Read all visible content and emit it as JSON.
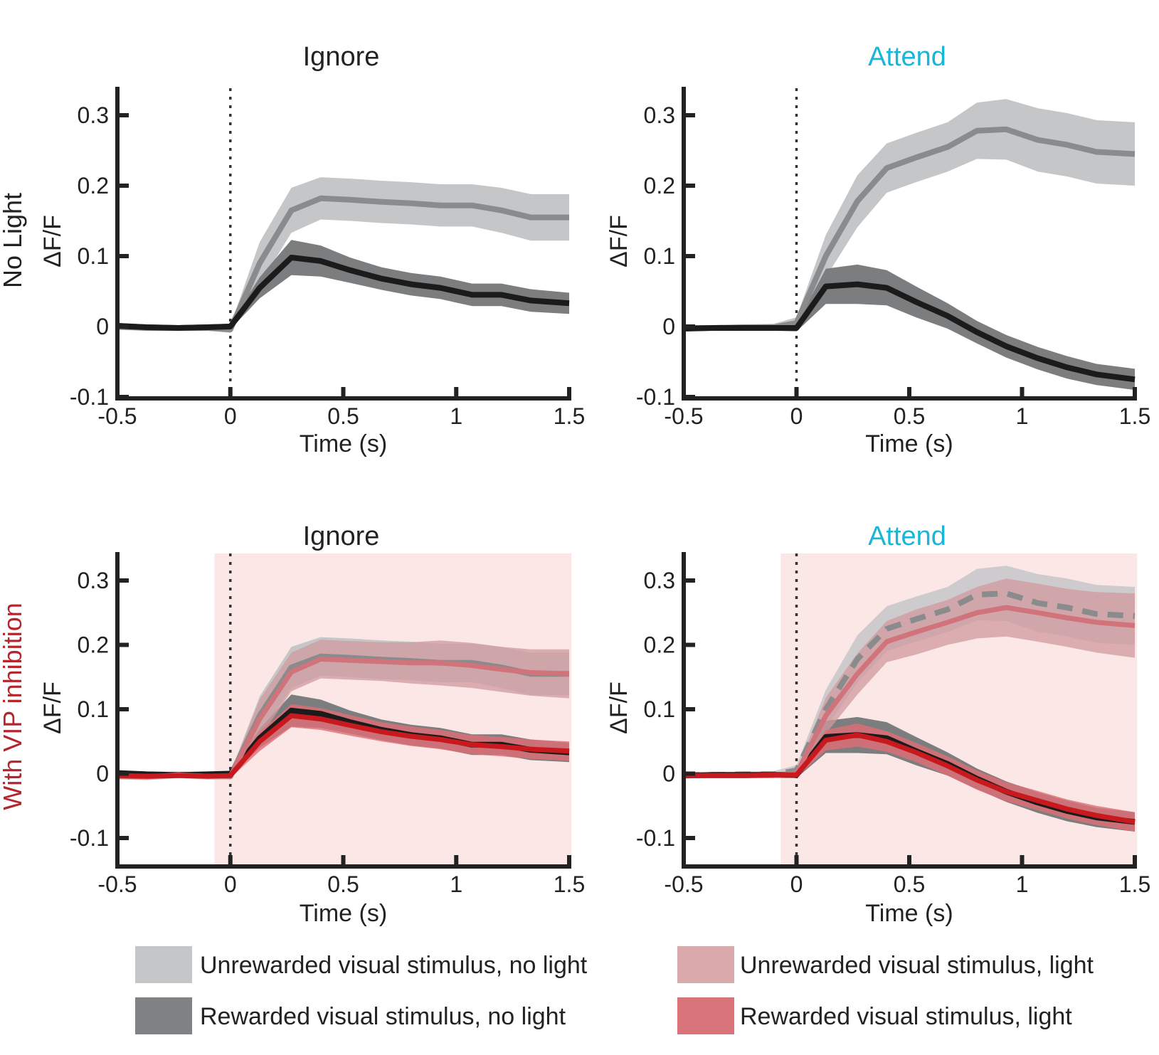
{
  "row_labels": {
    "top": {
      "text": "No Light",
      "color": "#222222"
    },
    "bottom": {
      "text": "With VIP inhibition",
      "color": "#b5252b"
    }
  },
  "colors": {
    "title_ignore": "#222222",
    "title_attend": "#18b6d8",
    "light_window": "#fbe7e6",
    "band_unrewarded_nolight": "#c4c6c8",
    "line_unrewarded_nolight": "#8a8b8d",
    "band_rewarded_nolight": "#7c7d7f",
    "line_rewarded_nolight": "#1b1b1b",
    "band_unrewarded_light": "#d29a9e",
    "line_unrewarded_light": "#d0737b",
    "band_rewarded_light": "#df6e75",
    "line_rewarded_light": "#c8191f"
  },
  "legend": [
    {
      "label": "Unrewarded visual stimulus, no light",
      "color": "#c4c6c8"
    },
    {
      "label": "Rewarded visual stimulus, no light",
      "color": "#808183"
    },
    {
      "label": "Unrewarded visual stimulus, light",
      "color": "#d9a9ac"
    },
    {
      "label": "Rewarded visual stimulus, light",
      "color": "#da747b"
    }
  ],
  "chart_data": [
    {
      "type": "line",
      "title": "Ignore",
      "title_color_key": "title_ignore",
      "xlabel": "Time (s)",
      "ylabel": "ΔF/F",
      "xlim": [
        -0.5,
        1.5
      ],
      "ylim": [
        -0.1,
        0.35
      ],
      "xticks": [
        -0.5,
        0,
        0.5,
        1,
        1.5
      ],
      "xtick_labels": [
        "-0.5",
        "0",
        "0.5",
        "1",
        "1.5"
      ],
      "yticks": [
        -0.1,
        0,
        0.1,
        0.2,
        0.3
      ],
      "ytick_labels": [
        "-0.1",
        "0",
        "0.1",
        "0.2",
        "0.3"
      ],
      "stimulus_onset": 0,
      "light_window": null,
      "x": [
        -0.5,
        -0.37,
        -0.23,
        -0.1,
        0,
        0.13,
        0.27,
        0.4,
        0.53,
        0.67,
        0.8,
        0.93,
        1.07,
        1.2,
        1.33,
        1.5
      ],
      "series": [
        {
          "name": "Unrewarded visual stimulus, no light",
          "style": "unrewarded_nolight",
          "values": [
            0.0,
            -0.002,
            -0.002,
            -0.002,
            -0.004,
            0.09,
            0.165,
            0.182,
            0.18,
            0.177,
            0.175,
            0.172,
            0.172,
            0.165,
            0.155,
            0.155
          ],
          "err": [
            0.005,
            0.004,
            0.004,
            0.004,
            0.005,
            0.03,
            0.032,
            0.03,
            0.03,
            0.03,
            0.03,
            0.03,
            0.03,
            0.032,
            0.033,
            0.033
          ]
        },
        {
          "name": "Rewarded visual stimulus, no light",
          "style": "rewarded_nolight",
          "values": [
            0.001,
            -0.001,
            -0.002,
            -0.001,
            0.0,
            0.055,
            0.098,
            0.093,
            0.08,
            0.068,
            0.06,
            0.055,
            0.045,
            0.045,
            0.037,
            0.033
          ],
          "err": [
            0.004,
            0.004,
            0.004,
            0.004,
            0.004,
            0.015,
            0.025,
            0.022,
            0.018,
            0.016,
            0.016,
            0.016,
            0.016,
            0.016,
            0.016,
            0.015
          ]
        }
      ]
    },
    {
      "type": "line",
      "title": "Attend",
      "title_color_key": "title_attend",
      "xlabel": "Time (s)",
      "ylabel": "ΔF/F",
      "xlim": [
        -0.5,
        1.5
      ],
      "ylim": [
        -0.1,
        0.35
      ],
      "xticks": [
        -0.5,
        0,
        0.5,
        1,
        1.5
      ],
      "xtick_labels": [
        "-0.5",
        "0",
        "0.5",
        "1",
        "1.5"
      ],
      "yticks": [
        -0.1,
        0,
        0.1,
        0.2,
        0.3
      ],
      "ytick_labels": [
        "-0.1",
        "0",
        "0.1",
        "0.2",
        "0.3"
      ],
      "stimulus_onset": 0,
      "light_window": null,
      "x": [
        -0.5,
        -0.37,
        -0.23,
        -0.1,
        0,
        0.13,
        0.27,
        0.4,
        0.53,
        0.67,
        0.8,
        0.93,
        1.07,
        1.2,
        1.33,
        1.5
      ],
      "series": [
        {
          "name": "Unrewarded visual stimulus, no light",
          "style": "unrewarded_nolight",
          "values": [
            -0.002,
            -0.002,
            -0.001,
            -0.001,
            0.005,
            0.1,
            0.178,
            0.225,
            0.24,
            0.255,
            0.278,
            0.28,
            0.265,
            0.258,
            0.248,
            0.245
          ],
          "err": [
            0.004,
            0.004,
            0.004,
            0.005,
            0.008,
            0.03,
            0.037,
            0.035,
            0.035,
            0.035,
            0.04,
            0.043,
            0.045,
            0.045,
            0.045,
            0.045
          ]
        },
        {
          "name": "Rewarded visual stimulus, no light",
          "style": "rewarded_nolight",
          "values": [
            -0.003,
            -0.002,
            -0.002,
            -0.002,
            -0.002,
            0.057,
            0.06,
            0.055,
            0.035,
            0.015,
            -0.008,
            -0.028,
            -0.045,
            -0.058,
            -0.068,
            -0.075
          ],
          "err": [
            0.004,
            0.004,
            0.004,
            0.004,
            0.005,
            0.025,
            0.028,
            0.025,
            0.022,
            0.018,
            0.016,
            0.016,
            0.016,
            0.016,
            0.015,
            0.015
          ]
        }
      ]
    },
    {
      "type": "line",
      "title": "Ignore",
      "title_color_key": "title_ignore",
      "xlabel": "Time (s)",
      "ylabel": "ΔF/F",
      "xlim": [
        -0.5,
        1.5
      ],
      "ylim": [
        -0.1,
        0.35
      ],
      "xticks": [
        -0.5,
        0,
        0.5,
        1,
        1.5
      ],
      "xtick_labels": [
        "-0.5",
        "0",
        "0.5",
        "1",
        "1.5"
      ],
      "yticks": [
        -0.1,
        0,
        0.1,
        0.2,
        0.3
      ],
      "ytick_labels": [
        "-0.1",
        "0",
        "0.1",
        "0.2",
        "0.3"
      ],
      "stimulus_onset": 0,
      "light_window": [
        -0.07,
        1.51
      ],
      "x": [
        -0.5,
        -0.37,
        -0.23,
        -0.1,
        0,
        0.13,
        0.27,
        0.4,
        0.53,
        0.67,
        0.8,
        0.93,
        1.07,
        1.2,
        1.33,
        1.5
      ],
      "series": [
        {
          "name": "Unrewarded visual stimulus, no light",
          "style": "unrewarded_nolight",
          "values": [
            0.0,
            -0.002,
            -0.002,
            -0.002,
            -0.004,
            0.09,
            0.165,
            0.182,
            0.18,
            0.177,
            0.175,
            0.172,
            0.172,
            0.165,
            0.155,
            0.155
          ],
          "err": [
            0.005,
            0.004,
            0.004,
            0.004,
            0.005,
            0.03,
            0.032,
            0.03,
            0.03,
            0.03,
            0.03,
            0.03,
            0.03,
            0.032,
            0.033,
            0.033
          ]
        },
        {
          "name": "Rewarded visual stimulus, no light",
          "style": "rewarded_nolight",
          "values": [
            0.001,
            -0.001,
            -0.002,
            -0.001,
            0.0,
            0.055,
            0.098,
            0.093,
            0.08,
            0.068,
            0.06,
            0.055,
            0.045,
            0.045,
            0.037,
            0.033
          ],
          "err": [
            0.004,
            0.004,
            0.004,
            0.004,
            0.004,
            0.015,
            0.025,
            0.022,
            0.018,
            0.016,
            0.016,
            0.016,
            0.016,
            0.016,
            0.016,
            0.015
          ]
        },
        {
          "name": "Unrewarded visual stimulus, light",
          "style": "unrewarded_light",
          "values": [
            -0.004,
            -0.005,
            -0.002,
            -0.004,
            -0.004,
            0.085,
            0.158,
            0.178,
            0.176,
            0.174,
            0.172,
            0.172,
            0.168,
            0.162,
            0.157,
            0.155
          ],
          "err": [
            0.005,
            0.005,
            0.005,
            0.005,
            0.005,
            0.03,
            0.03,
            0.03,
            0.03,
            0.03,
            0.032,
            0.035,
            0.035,
            0.035,
            0.036,
            0.038
          ]
        },
        {
          "name": "Rewarded visual stimulus, light",
          "style": "rewarded_light",
          "values": [
            -0.003,
            -0.004,
            -0.003,
            -0.004,
            -0.003,
            0.05,
            0.09,
            0.085,
            0.075,
            0.065,
            0.058,
            0.053,
            0.045,
            0.042,
            0.038,
            0.035
          ],
          "err": [
            0.004,
            0.004,
            0.004,
            0.004,
            0.004,
            0.015,
            0.018,
            0.017,
            0.016,
            0.015,
            0.015,
            0.015,
            0.015,
            0.015,
            0.015,
            0.015
          ]
        }
      ]
    },
    {
      "type": "line",
      "title": "Attend",
      "title_color_key": "title_attend",
      "xlabel": "Time (s)",
      "ylabel": "ΔF/F",
      "xlim": [
        -0.5,
        1.5
      ],
      "ylim": [
        -0.1,
        0.35
      ],
      "xticks": [
        -0.5,
        0,
        0.5,
        1,
        1.5
      ],
      "xtick_labels": [
        "-0.5",
        "0",
        "0.5",
        "1",
        "1.5"
      ],
      "yticks": [
        -0.1,
        0,
        0.1,
        0.2,
        0.3
      ],
      "ytick_labels": [
        "-0.1",
        "0",
        "0.1",
        "0.2",
        "0.3"
      ],
      "stimulus_onset": 0,
      "light_window": [
        -0.07,
        1.51
      ],
      "x": [
        -0.5,
        -0.37,
        -0.23,
        -0.1,
        0,
        0.13,
        0.27,
        0.4,
        0.53,
        0.67,
        0.8,
        0.93,
        1.07,
        1.2,
        1.33,
        1.5
      ],
      "series": [
        {
          "name": "Unrewarded visual stimulus, no light",
          "style": "unrewarded_nolight_dashed",
          "values": [
            -0.002,
            -0.002,
            -0.001,
            -0.001,
            0.005,
            0.1,
            0.178,
            0.225,
            0.24,
            0.255,
            0.278,
            0.28,
            0.265,
            0.258,
            0.248,
            0.245
          ],
          "err": [
            0.004,
            0.004,
            0.004,
            0.005,
            0.008,
            0.03,
            0.037,
            0.035,
            0.035,
            0.035,
            0.04,
            0.043,
            0.045,
            0.045,
            0.045,
            0.045
          ]
        },
        {
          "name": "Rewarded visual stimulus, no light",
          "style": "rewarded_nolight",
          "values": [
            -0.003,
            -0.002,
            -0.002,
            -0.002,
            -0.002,
            0.057,
            0.06,
            0.055,
            0.035,
            0.015,
            -0.008,
            -0.028,
            -0.045,
            -0.058,
            -0.068,
            -0.075
          ],
          "err": [
            0.004,
            0.004,
            0.004,
            0.004,
            0.005,
            0.025,
            0.028,
            0.025,
            0.022,
            0.018,
            0.016,
            0.016,
            0.016,
            0.016,
            0.015,
            0.015
          ]
        },
        {
          "name": "Unrewarded visual stimulus, light",
          "style": "unrewarded_light",
          "values": [
            -0.003,
            -0.003,
            -0.003,
            -0.003,
            0.0,
            0.09,
            0.155,
            0.205,
            0.22,
            0.235,
            0.25,
            0.258,
            0.25,
            0.242,
            0.235,
            0.23
          ],
          "err": [
            0.004,
            0.004,
            0.004,
            0.004,
            0.006,
            0.028,
            0.032,
            0.032,
            0.035,
            0.035,
            0.04,
            0.045,
            0.045,
            0.045,
            0.047,
            0.05
          ]
        },
        {
          "name": "Rewarded visual stimulus, light",
          "style": "rewarded_light",
          "values": [
            -0.003,
            -0.003,
            -0.003,
            -0.002,
            -0.002,
            0.052,
            0.06,
            0.05,
            0.033,
            0.012,
            -0.01,
            -0.028,
            -0.042,
            -0.055,
            -0.065,
            -0.075
          ],
          "err": [
            0.004,
            0.004,
            0.004,
            0.004,
            0.004,
            0.016,
            0.018,
            0.016,
            0.015,
            0.015,
            0.015,
            0.015,
            0.015,
            0.015,
            0.015,
            0.015
          ]
        }
      ]
    }
  ]
}
